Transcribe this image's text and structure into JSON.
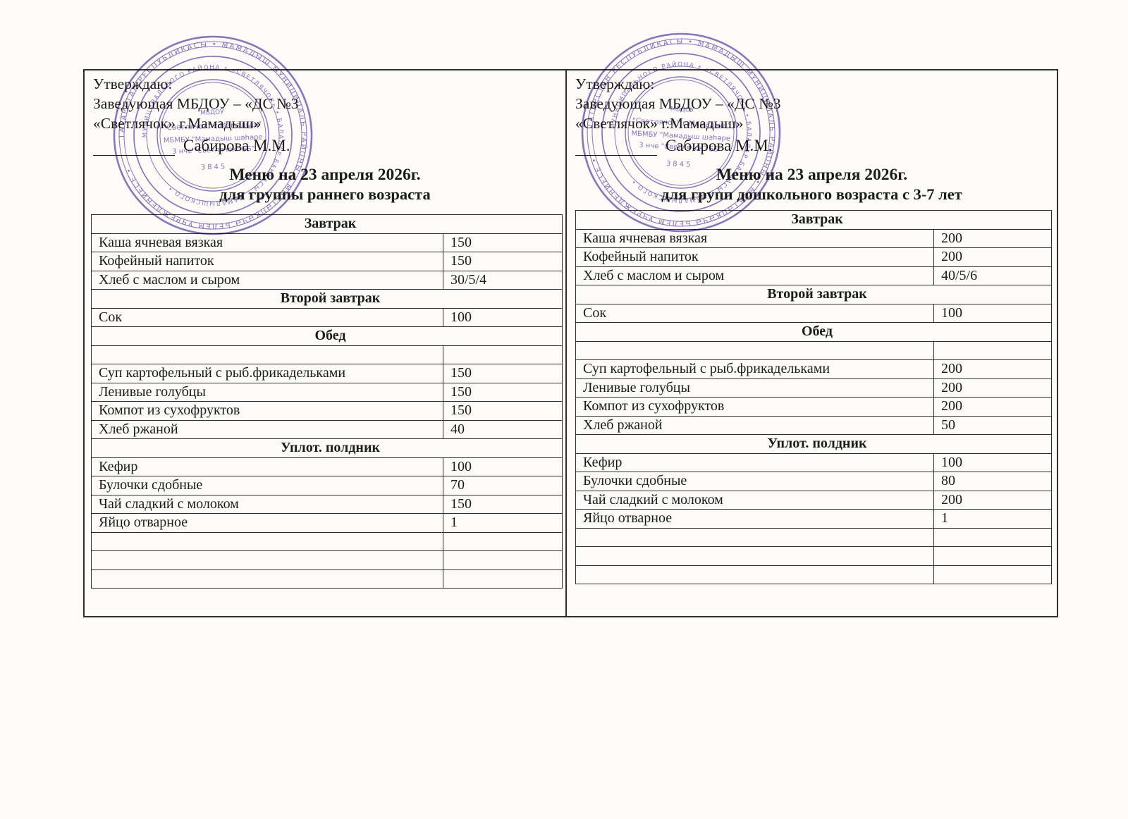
{
  "document": {
    "background": "#fcfbf8",
    "ink": "#1c1c1c",
    "line_color": "#2f2f2f"
  },
  "stamp": {
    "color": "#6b51ab",
    "ring_outer_text": "ТАТАРСТАН РЕСПУБЛИКАСЫ • МАМАДЫШ МУНИЦИПАЛЬ РАЙОНЫ • МӘКТӘПКӘЧӘ БЕЛЕМ УЧРЕЖДЕНИЕСЕ • ",
    "ring_inner_text": "МУНИЦИПАЛЬНОГО РАЙОНА • «СВЕТЛЯЧОК» • БАЛАЛАР БАКЧАСЫ • МАМАДЫШСКОГО • ",
    "center_line1": "МБДОУ",
    "center_line2": "\"Светлячок\" г.Мамадыш\"",
    "center_line3": "МБМБУ \"Мамадыш шәһәре",
    "center_line4": "3 нче \"Светлячок\" ББ\"",
    "center_line5": "3845"
  },
  "panels": [
    {
      "approval_line1": "Утверждаю:",
      "approval_line2": "Заведующая МБДОУ – «ДС №3",
      "approval_line3": "«Светлячок» г.Мамадыш»",
      "signee": "Сабирова М.М.",
      "menu_title": "Меню на 23 апреля 2026г.",
      "menu_subtitle": "для группы раннего возраста",
      "rows": [
        {
          "type": "section",
          "label": "Завтрак"
        },
        {
          "type": "item",
          "label": "Каша ячневая вязкая",
          "qty": "150"
        },
        {
          "type": "item",
          "label": "Кофейный напиток",
          "qty": "150"
        },
        {
          "type": "item",
          "label": "Хлеб с маслом и сыром",
          "qty": "30/5/4"
        },
        {
          "type": "section",
          "label": "Второй завтрак"
        },
        {
          "type": "item",
          "label": "Сок",
          "qty": "100"
        },
        {
          "type": "section",
          "label": "Обед"
        },
        {
          "type": "item",
          "label": "",
          "qty": ""
        },
        {
          "type": "item",
          "label": "Суп картофельный с рыб.фрикадельками",
          "qty": "150"
        },
        {
          "type": "item",
          "label": "Ленивые голубцы",
          "qty": "150"
        },
        {
          "type": "item",
          "label": "Компот из сухофруктов",
          "qty": "150"
        },
        {
          "type": "item",
          "label": "Хлеб ржаной",
          "qty": "40"
        },
        {
          "type": "section",
          "label": "Уплот. полдник"
        },
        {
          "type": "item",
          "label": "Кефир",
          "qty": "100"
        },
        {
          "type": "item",
          "label": "Булочки сдобные",
          "qty": "70"
        },
        {
          "type": "item",
          "label": "Чай сладкий с молоком",
          "qty": "150"
        },
        {
          "type": "item",
          "label": "Яйцо отварное",
          "qty": "1"
        },
        {
          "type": "item",
          "label": "",
          "qty": ""
        },
        {
          "type": "item",
          "label": "",
          "qty": ""
        },
        {
          "type": "item",
          "label": "",
          "qty": ""
        }
      ]
    },
    {
      "approval_line1": "Утверждаю:",
      "approval_line2": "Заведующая МБДОУ – «ДС №3",
      "approval_line3": "«Светлячок» г.Мамадыш»",
      "signee": "Сабирова М.М.",
      "menu_title": "Меню на 23 апреля 2026г.",
      "menu_subtitle": "для групп дошкольного возраста с 3-7 лет",
      "rows": [
        {
          "type": "section",
          "label": "Завтрак"
        },
        {
          "type": "item",
          "label": "Каша ячневая вязкая",
          "qty": "200"
        },
        {
          "type": "item",
          "label": "Кофейный напиток",
          "qty": "200"
        },
        {
          "type": "item",
          "label": "Хлеб с маслом и сыром",
          "qty": "40/5/6"
        },
        {
          "type": "section",
          "label": "Второй завтрак"
        },
        {
          "type": "item",
          "label": "Сок",
          "qty": "100"
        },
        {
          "type": "section",
          "label": "Обед"
        },
        {
          "type": "item",
          "label": "",
          "qty": ""
        },
        {
          "type": "item",
          "label": "Суп картофельный с рыб.фрикадельками",
          "qty": "200"
        },
        {
          "type": "item",
          "label": "Ленивые голубцы",
          "qty": "200"
        },
        {
          "type": "item",
          "label": "Компот из сухофруктов",
          "qty": "200"
        },
        {
          "type": "item",
          "label": "Хлеб ржаной",
          "qty": "50"
        },
        {
          "type": "section",
          "label": "Уплот. полдник"
        },
        {
          "type": "item",
          "label": "Кефир",
          "qty": "100"
        },
        {
          "type": "item",
          "label": "Булочки сдобные",
          "qty": "80"
        },
        {
          "type": "item",
          "label": "Чай сладкий с молоком",
          "qty": "200"
        },
        {
          "type": "item",
          "label": "Яйцо отварное",
          "qty": "1"
        },
        {
          "type": "item",
          "label": "",
          "qty": ""
        },
        {
          "type": "item",
          "label": "",
          "qty": ""
        },
        {
          "type": "item",
          "label": "",
          "qty": ""
        }
      ]
    }
  ]
}
